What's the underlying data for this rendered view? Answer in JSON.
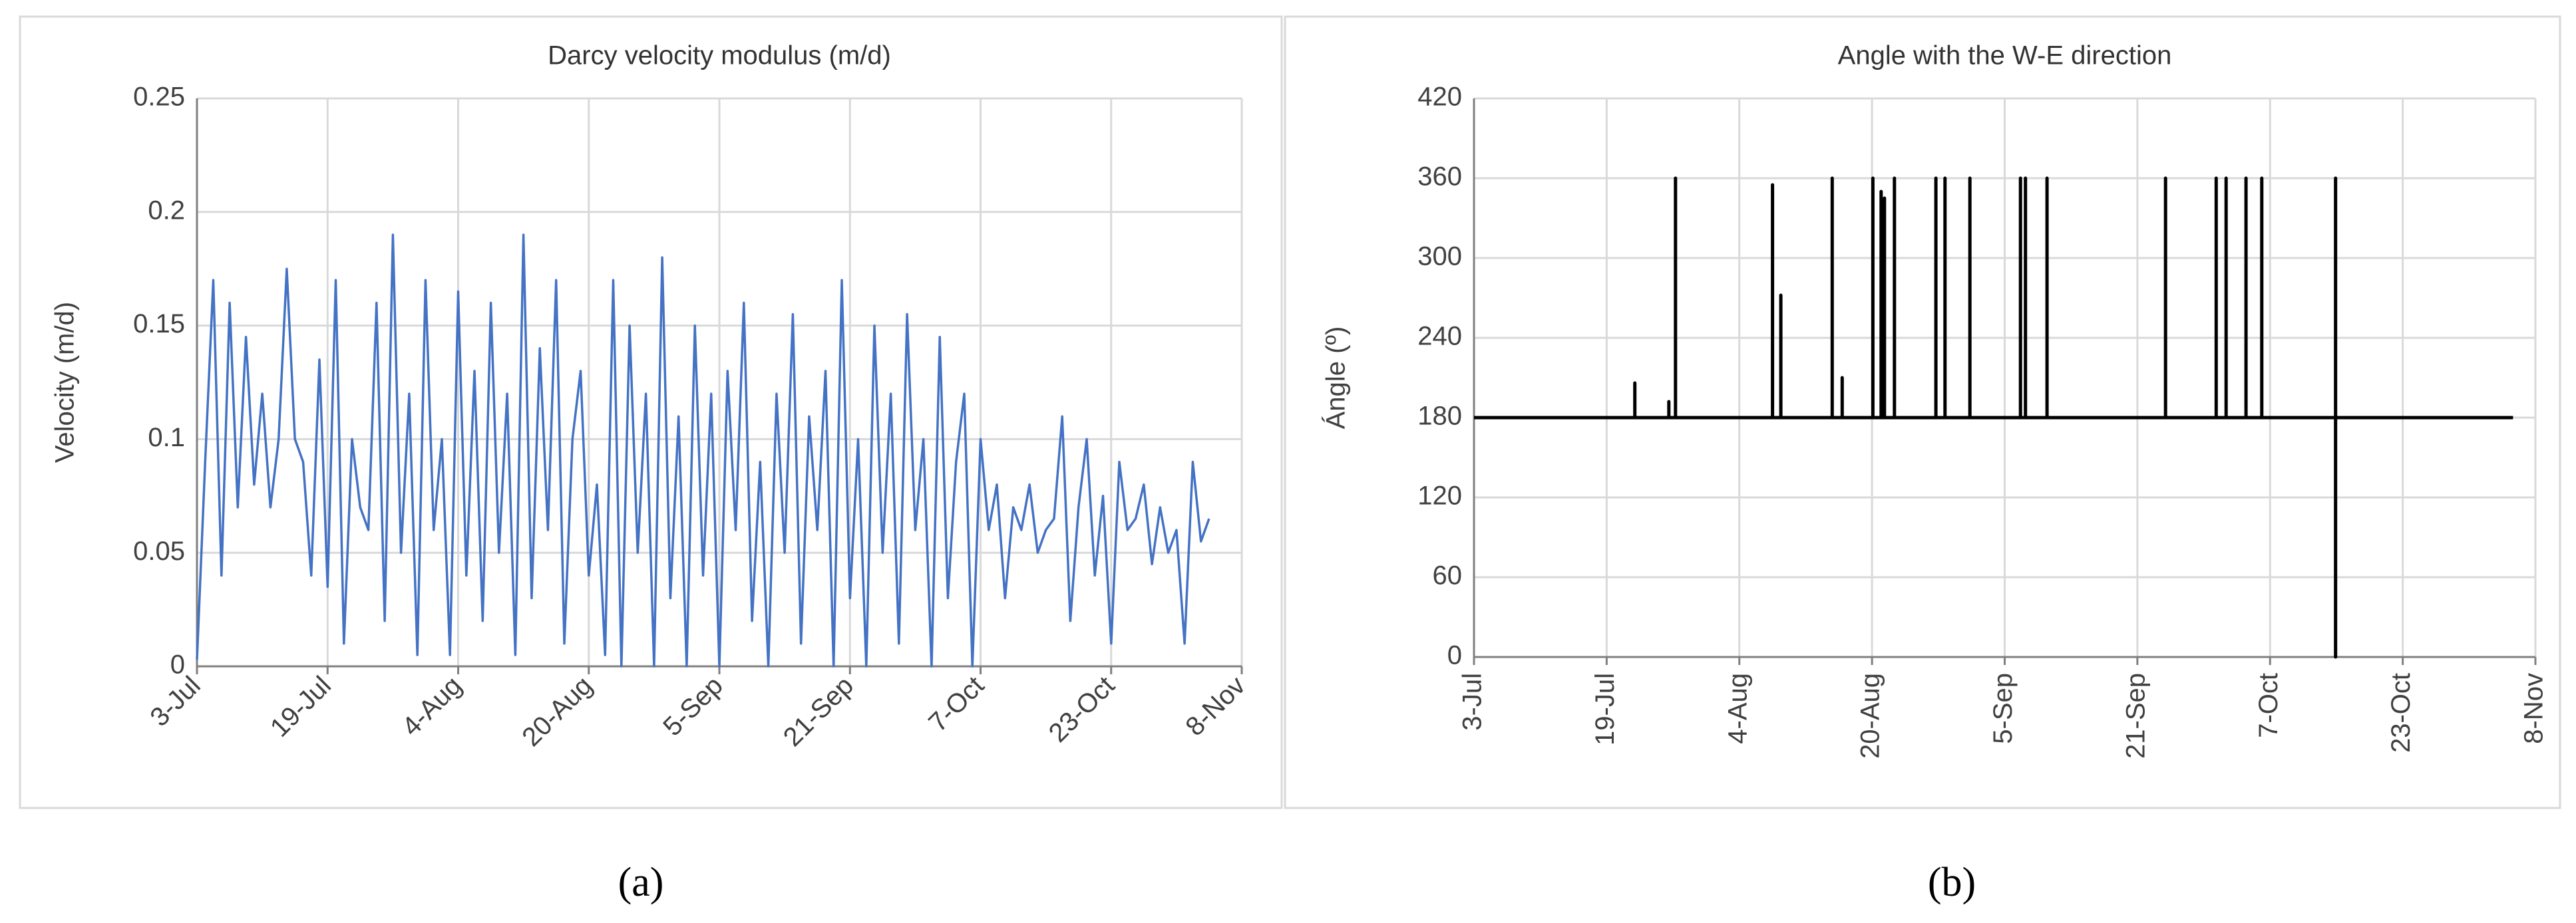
{
  "chart_data": [
    {
      "type": "line",
      "title": "Darcy velocity modulus (m/d)",
      "ylabel": "Velocity (m/d)",
      "caption": "(a)",
      "color": "#4472c4",
      "grid": true,
      "xlim": [
        0,
        128
      ],
      "xticks": [
        {
          "value": 0,
          "label": "3-Jul"
        },
        {
          "value": 16,
          "label": "19-Jul"
        },
        {
          "value": 32,
          "label": "4-Aug"
        },
        {
          "value": 48,
          "label": "20-Aug"
        },
        {
          "value": 64,
          "label": "5-Sep"
        },
        {
          "value": 80,
          "label": "21-Sep"
        },
        {
          "value": 96,
          "label": "7-Oct"
        },
        {
          "value": 112,
          "label": "23-Oct"
        },
        {
          "value": 128,
          "label": "8-Nov"
        }
      ],
      "ylim": [
        0,
        0.25
      ],
      "yticks": [
        0,
        0.05,
        0.1,
        0.15,
        0.2,
        0.25
      ],
      "x": [
        0,
        1,
        2,
        3,
        4,
        5,
        6,
        7,
        8,
        9,
        10,
        11,
        12,
        13,
        14,
        15,
        16,
        17,
        18,
        19,
        20,
        21,
        22,
        23,
        24,
        25,
        26,
        27,
        28,
        29,
        30,
        31,
        32,
        33,
        34,
        35,
        36,
        37,
        38,
        39,
        40,
        41,
        42,
        43,
        44,
        45,
        46,
        47,
        48,
        49,
        50,
        51,
        52,
        53,
        54,
        55,
        56,
        57,
        58,
        59,
        60,
        61,
        62,
        63,
        64,
        65,
        66,
        67,
        68,
        69,
        70,
        71,
        72,
        73,
        74,
        75,
        76,
        77,
        78,
        79,
        80,
        81,
        82,
        83,
        84,
        85,
        86,
        87,
        88,
        89,
        90,
        91,
        92,
        93,
        94,
        95,
        96,
        97,
        98,
        99,
        100,
        101,
        102,
        103,
        104,
        105,
        106,
        107,
        108,
        109,
        110,
        111,
        112,
        113,
        114,
        115,
        116,
        117,
        118,
        119,
        120,
        121,
        122,
        123,
        124
      ],
      "values": [
        0.003,
        0.09,
        0.17,
        0.04,
        0.16,
        0.07,
        0.145,
        0.08,
        0.12,
        0.07,
        0.1,
        0.175,
        0.1,
        0.09,
        0.04,
        0.135,
        0.035,
        0.17,
        0.01,
        0.1,
        0.07,
        0.06,
        0.16,
        0.02,
        0.19,
        0.05,
        0.12,
        0.005,
        0.17,
        0.06,
        0.1,
        0.005,
        0.165,
        0.04,
        0.13,
        0.02,
        0.16,
        0.05,
        0.12,
        0.005,
        0.19,
        0.03,
        0.14,
        0.06,
        0.17,
        0.01,
        0.1,
        0.13,
        0.04,
        0.08,
        0.005,
        0.17,
        0.0,
        0.15,
        0.05,
        0.12,
        0.0,
        0.18,
        0.03,
        0.11,
        0.0,
        0.15,
        0.04,
        0.12,
        0.0,
        0.13,
        0.06,
        0.16,
        0.02,
        0.09,
        0.0,
        0.12,
        0.05,
        0.155,
        0.01,
        0.11,
        0.06,
        0.13,
        0.0,
        0.17,
        0.03,
        0.1,
        0.0,
        0.15,
        0.05,
        0.12,
        0.01,
        0.155,
        0.06,
        0.1,
        0.0,
        0.145,
        0.03,
        0.09,
        0.12,
        0.0,
        0.1,
        0.06,
        0.08,
        0.03,
        0.07,
        0.06,
        0.08,
        0.05,
        0.06,
        0.065,
        0.11,
        0.02,
        0.07,
        0.1,
        0.04,
        0.075,
        0.01,
        0.09,
        0.06,
        0.065,
        0.08,
        0.045,
        0.07,
        0.05,
        0.06,
        0.01,
        0.09,
        0.055,
        0.065
      ]
    },
    {
      "type": "line",
      "title": "Angle with the W-E direction",
      "ylabel": "Ángle (º)",
      "caption": "(b)",
      "color": "#000000",
      "grid": true,
      "xlim": [
        0,
        128
      ],
      "xticks": [
        {
          "value": 0,
          "label": "3-Jul"
        },
        {
          "value": 16,
          "label": "19-Jul"
        },
        {
          "value": 32,
          "label": "4-Aug"
        },
        {
          "value": 48,
          "label": "20-Aug"
        },
        {
          "value": 64,
          "label": "5-Sep"
        },
        {
          "value": 80,
          "label": "21-Sep"
        },
        {
          "value": 96,
          "label": "7-Oct"
        },
        {
          "value": 112,
          "label": "23-Oct"
        },
        {
          "value": 128,
          "label": "8-Nov"
        }
      ],
      "ylim": [
        0,
        420
      ],
      "yticks": [
        0,
        60,
        120,
        180,
        240,
        300,
        360,
        420
      ],
      "x": [
        0,
        19.4,
        19.4,
        19.4,
        23.5,
        23.5,
        23.5,
        24.3,
        24.3,
        24.3,
        36,
        36,
        36,
        37,
        37,
        37,
        43.2,
        43.2,
        43.2,
        44.4,
        44.4,
        44.4,
        48.1,
        48.1,
        48.1,
        49.1,
        49.1,
        49.1,
        49.5,
        49.5,
        49.5,
        50.7,
        50.7,
        50.7,
        55.7,
        55.7,
        55.7,
        56.8,
        56.8,
        56.8,
        59.8,
        59.8,
        59.8,
        65.9,
        65.9,
        65.9,
        66.5,
        66.5,
        66.5,
        69.1,
        69.1,
        69.1,
        83.4,
        83.4,
        83.4,
        89.5,
        89.5,
        89.5,
        90.7,
        90.7,
        90.7,
        93.1,
        93.1,
        93.1,
        95,
        95,
        95,
        103.9,
        103.9,
        103.9,
        103.9,
        125.3
      ],
      "values": [
        180,
        180,
        206,
        180,
        180,
        192,
        180,
        180,
        360,
        180,
        180,
        355,
        180,
        180,
        272,
        180,
        180,
        360,
        180,
        180,
        210,
        180,
        180,
        360,
        180,
        180,
        350,
        180,
        180,
        345,
        180,
        180,
        360,
        180,
        180,
        360,
        180,
        180,
        360,
        180,
        180,
        360,
        180,
        180,
        360,
        180,
        180,
        360,
        180,
        180,
        360,
        180,
        180,
        360,
        180,
        180,
        360,
        180,
        180,
        360,
        180,
        180,
        360,
        180,
        180,
        360,
        180,
        180,
        360,
        0,
        180,
        180
      ]
    }
  ]
}
